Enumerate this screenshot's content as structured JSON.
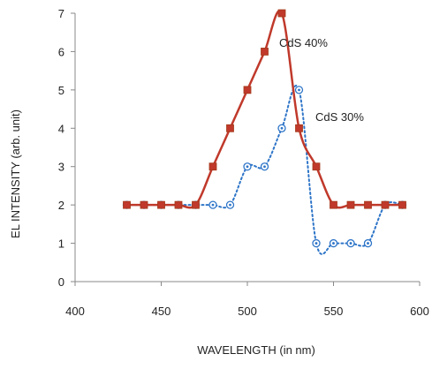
{
  "chart_data": {
    "type": "line",
    "xlabel": "WAVELENGTH (in nm)",
    "ylabel": "EL INTENSITY (arb. unit)",
    "xlim": [
      400,
      600
    ],
    "ylim": [
      0,
      7
    ],
    "xticks": [
      400,
      450,
      500,
      550,
      600
    ],
    "yticks": [
      0,
      1,
      2,
      3,
      4,
      5,
      6,
      7
    ],
    "grid": false,
    "legend": "none",
    "series": [
      {
        "name": "CdS 40%",
        "color": "#c0392b",
        "line_style": "solid",
        "marker": "square",
        "x": [
          430,
          440,
          450,
          460,
          470,
          480,
          490,
          500,
          510,
          520,
          530,
          540,
          550,
          560,
          570,
          580,
          590
        ],
        "y": [
          2,
          2,
          2,
          2,
          2,
          3,
          4,
          5,
          6,
          7,
          4,
          3,
          2,
          2,
          2,
          2,
          2
        ]
      },
      {
        "name": "CdS 30%",
        "color": "#2e75c8",
        "line_style": "dotted",
        "marker": "circle",
        "x": [
          430,
          440,
          450,
          460,
          470,
          480,
          490,
          500,
          510,
          520,
          530,
          540,
          550,
          560,
          570,
          580,
          590
        ],
        "y": [
          2,
          2,
          2,
          2,
          2,
          2,
          2,
          3,
          3,
          4,
          5,
          1,
          1,
          1,
          1,
          2,
          2
        ]
      }
    ]
  }
}
